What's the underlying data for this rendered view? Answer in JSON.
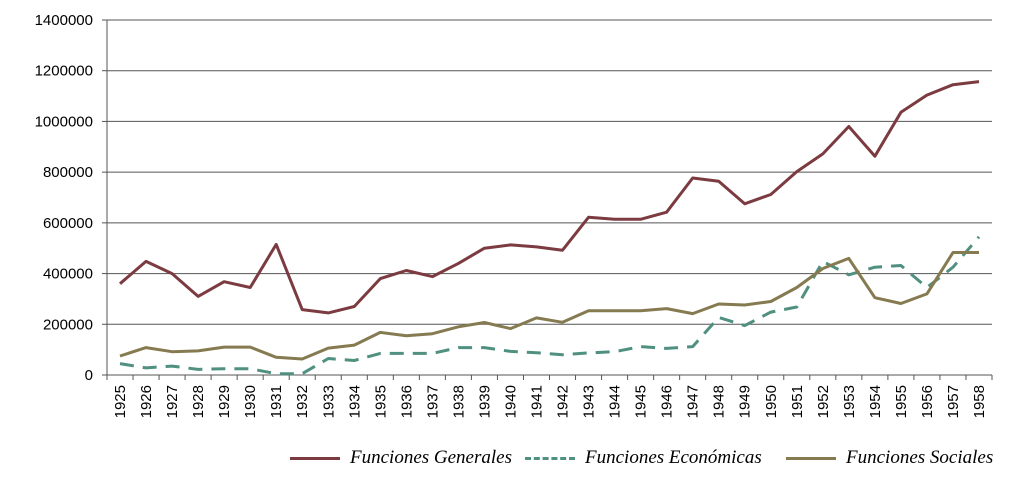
{
  "chart_data": {
    "type": "line",
    "categories": [
      "1925",
      "1926",
      "1927",
      "1928",
      "1929",
      "1930",
      "1931",
      "1932",
      "1933",
      "1934",
      "1935",
      "1936",
      "1937",
      "1938",
      "1939",
      "1940",
      "1941",
      "1942",
      "1943",
      "1944",
      "1945",
      "1946",
      "1947",
      "1948",
      "1949",
      "1950",
      "1951",
      "1952",
      "1953",
      "1954",
      "1955",
      "1956",
      "1957",
      "1958"
    ],
    "ylim": [
      0,
      1400000
    ],
    "yticks": [
      0,
      200000,
      400000,
      600000,
      800000,
      1000000,
      1200000,
      1400000
    ],
    "ytick_labels": [
      "0",
      "200000",
      "400000",
      "600000",
      "800000",
      "1000000",
      "1200000",
      "1400000"
    ],
    "grid": "horizontal",
    "legend_position": "bottom",
    "series": [
      {
        "name": "Funciones Generales",
        "color": "#7b3b40",
        "style": "solid",
        "values": [
          360000,
          448000,
          400000,
          310000,
          368000,
          345000,
          515000,
          258000,
          245000,
          270000,
          380000,
          412000,
          388000,
          440000,
          500000,
          513000,
          505000,
          492000,
          622000,
          614000,
          614000,
          642000,
          777000,
          764000,
          675000,
          712000,
          802000,
          872000,
          980000,
          863000,
          1036000,
          1104000,
          1145000,
          1157000
        ]
      },
      {
        "name": "Funciones Económicas",
        "color": "#4f9080",
        "style": "dashed",
        "values": [
          45000,
          28000,
          35000,
          22000,
          25000,
          25000,
          5000,
          5000,
          65000,
          57000,
          85000,
          85000,
          85000,
          108000,
          108000,
          93000,
          88000,
          80000,
          87000,
          92000,
          112000,
          105000,
          112000,
          227000,
          195000,
          248000,
          268000,
          448000,
          395000,
          425000,
          432000,
          345000,
          425000,
          545000
        ]
      },
      {
        "name": "Funciones Sociales",
        "color": "#857a50",
        "style": "solid",
        "values": [
          75000,
          108000,
          92000,
          95000,
          110000,
          110000,
          70000,
          63000,
          106000,
          118000,
          168000,
          155000,
          163000,
          190000,
          207000,
          183000,
          225000,
          208000,
          253000,
          253000,
          253000,
          262000,
          242000,
          280000,
          276000,
          290000,
          345000,
          420000,
          460000,
          305000,
          282000,
          320000,
          483000,
          483000
        ]
      }
    ]
  }
}
